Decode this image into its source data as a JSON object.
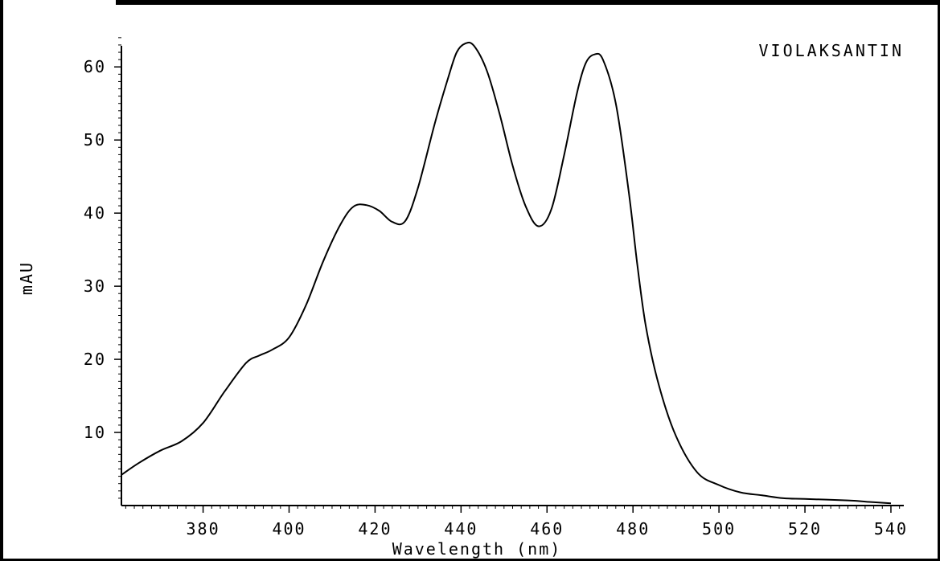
{
  "chart_data": {
    "type": "line",
    "title": "VIOLAKSANTIN",
    "xlabel": "Wavelength (nm)",
    "ylabel": "mAU",
    "xlim": [
      361,
      543
    ],
    "ylim": [
      0,
      65
    ],
    "x_ticks": [
      380,
      400,
      420,
      440,
      460,
      480,
      500,
      520,
      540
    ],
    "y_ticks": [
      10,
      20,
      30,
      40,
      50,
      60
    ],
    "grid": false,
    "series": [
      {
        "values": [
          [
            361,
            4.2
          ],
          [
            365,
            5.8
          ],
          [
            370,
            7.5
          ],
          [
            375,
            8.8
          ],
          [
            380,
            11.3
          ],
          [
            385,
            15.6
          ],
          [
            390,
            19.5
          ],
          [
            393,
            20.5
          ],
          [
            396,
            21.3
          ],
          [
            400,
            23.0
          ],
          [
            404,
            27.5
          ],
          [
            408,
            33.5
          ],
          [
            412,
            38.5
          ],
          [
            415,
            40.9
          ],
          [
            418,
            41.1
          ],
          [
            421,
            40.3
          ],
          [
            424,
            38.8
          ],
          [
            427,
            38.9
          ],
          [
            430,
            43.5
          ],
          [
            434,
            52.5
          ],
          [
            437,
            58.5
          ],
          [
            439,
            62.0
          ],
          [
            441,
            63.2
          ],
          [
            443,
            62.9
          ],
          [
            446,
            59.5
          ],
          [
            449,
            53.5
          ],
          [
            452,
            46.5
          ],
          [
            455,
            41.0
          ],
          [
            458,
            38.2
          ],
          [
            461,
            40.5
          ],
          [
            464,
            48.0
          ],
          [
            467,
            56.5
          ],
          [
            469,
            60.5
          ],
          [
            471,
            61.7
          ],
          [
            473,
            61.0
          ],
          [
            476,
            55.0
          ],
          [
            479,
            43.0
          ],
          [
            481,
            33.0
          ],
          [
            483,
            24.5
          ],
          [
            486,
            16.5
          ],
          [
            490,
            9.5
          ],
          [
            495,
            4.5
          ],
          [
            500,
            2.8
          ],
          [
            505,
            1.8
          ],
          [
            510,
            1.4
          ],
          [
            515,
            1.0
          ],
          [
            520,
            0.9
          ],
          [
            530,
            0.7
          ],
          [
            535,
            0.5
          ],
          [
            540,
            0.3
          ]
        ]
      }
    ]
  }
}
